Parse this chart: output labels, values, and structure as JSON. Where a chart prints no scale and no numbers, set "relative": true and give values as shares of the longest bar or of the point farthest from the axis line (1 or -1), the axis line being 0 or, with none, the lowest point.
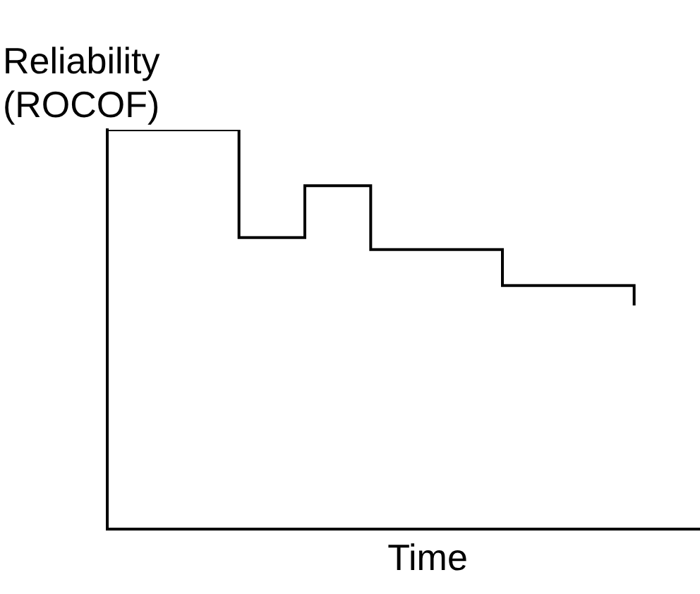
{
  "chart_data": {
    "type": "step",
    "ylabel": "Reliability\n(ROCOF)",
    "xlabel": "Time",
    "relative": true,
    "color": "#000000",
    "categories": [
      null,
      null,
      null,
      null,
      null,
      null,
      null,
      null,
      null,
      null
    ],
    "values": [
      1,
      1,
      0.73,
      0.86,
      0.7,
      0.7,
      0.61,
      0.61,
      0.56,
      null
    ]
  }
}
